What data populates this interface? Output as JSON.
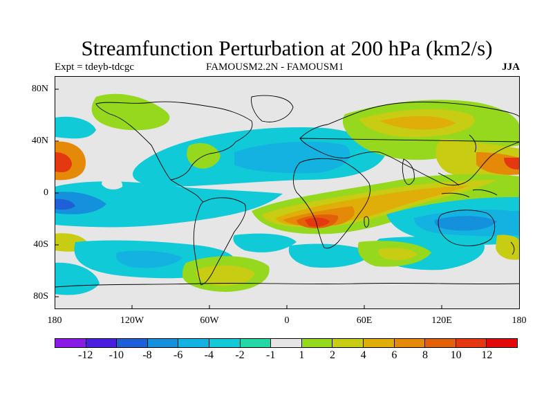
{
  "title": "Streamfunction Perturbation at 200 hPa (km2/s)",
  "subtitle_left": "Expt = tdeyb-tdcgc",
  "subtitle_center": "FAMOUSM2.2N - FAMOUSM1",
  "subtitle_right": "JJA",
  "lat_labels": [
    "80N",
    "40N",
    "0",
    "40S",
    "80S"
  ],
  "lon_labels": [
    "180",
    "120W",
    "60W",
    "0",
    "60E",
    "120E",
    "180"
  ],
  "colorbar": {
    "labels": [
      "-12",
      "-10",
      "-8",
      "-6",
      "-4",
      "-2",
      "-1",
      "1",
      "2",
      "4",
      "6",
      "8",
      "10",
      "12"
    ],
    "colors": [
      "#8a1be6",
      "#4a1fe0",
      "#1f5fd8",
      "#1590dc",
      "#14b2e0",
      "#10cad8",
      "#22d8a6",
      "#e6e6e6",
      "#96d81e",
      "#c8cc12",
      "#e0ae08",
      "#e48a08",
      "#e46008",
      "#e43810",
      "#e00808"
    ]
  }
}
